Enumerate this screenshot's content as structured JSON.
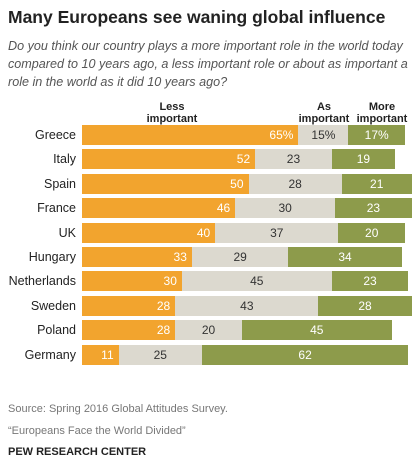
{
  "header": {
    "title": "Many Europeans see waning global influence",
    "subtitle": "Do you think our country plays a more important role in the world today compared to 10 years ago, a less important role or about as important a role in the world as it did 10 years ago?"
  },
  "chart_data": {
    "type": "bar",
    "orientation": "horizontal",
    "stacked": true,
    "categories": [
      "Greece",
      "Italy",
      "Spain",
      "France",
      "UK",
      "Hungary",
      "Netherlands",
      "Sweden",
      "Poland",
      "Germany"
    ],
    "series": [
      {
        "name": "Less important",
        "color": "#f2a42e",
        "values": [
          65,
          52,
          50,
          46,
          40,
          33,
          30,
          28,
          28,
          11
        ],
        "labels": [
          "65%",
          "52",
          "50",
          "46",
          "40",
          "33",
          "30",
          "28",
          "28",
          "11"
        ]
      },
      {
        "name": "As important",
        "color": "#dcd9cf",
        "values": [
          15,
          23,
          28,
          30,
          37,
          29,
          45,
          43,
          20,
          25
        ],
        "labels": [
          "15%",
          "23",
          "28",
          "30",
          "37",
          "29",
          "45",
          "43",
          "20",
          "25"
        ]
      },
      {
        "name": "More important",
        "color": "#8d9b4b",
        "values": [
          17,
          19,
          21,
          23,
          20,
          34,
          23,
          28,
          45,
          62
        ],
        "labels": [
          "17%",
          "19",
          "21",
          "23",
          "20",
          "34",
          "23",
          "28",
          "45",
          "62"
        ]
      }
    ],
    "legend": [
      "Less important",
      "As important",
      "More important"
    ]
  },
  "footer": {
    "source": "Source: Spring 2016 Global Attitudes Survey.",
    "report": "“Europeans Face the World Divided”",
    "org": "PEW RESEARCH CENTER"
  }
}
